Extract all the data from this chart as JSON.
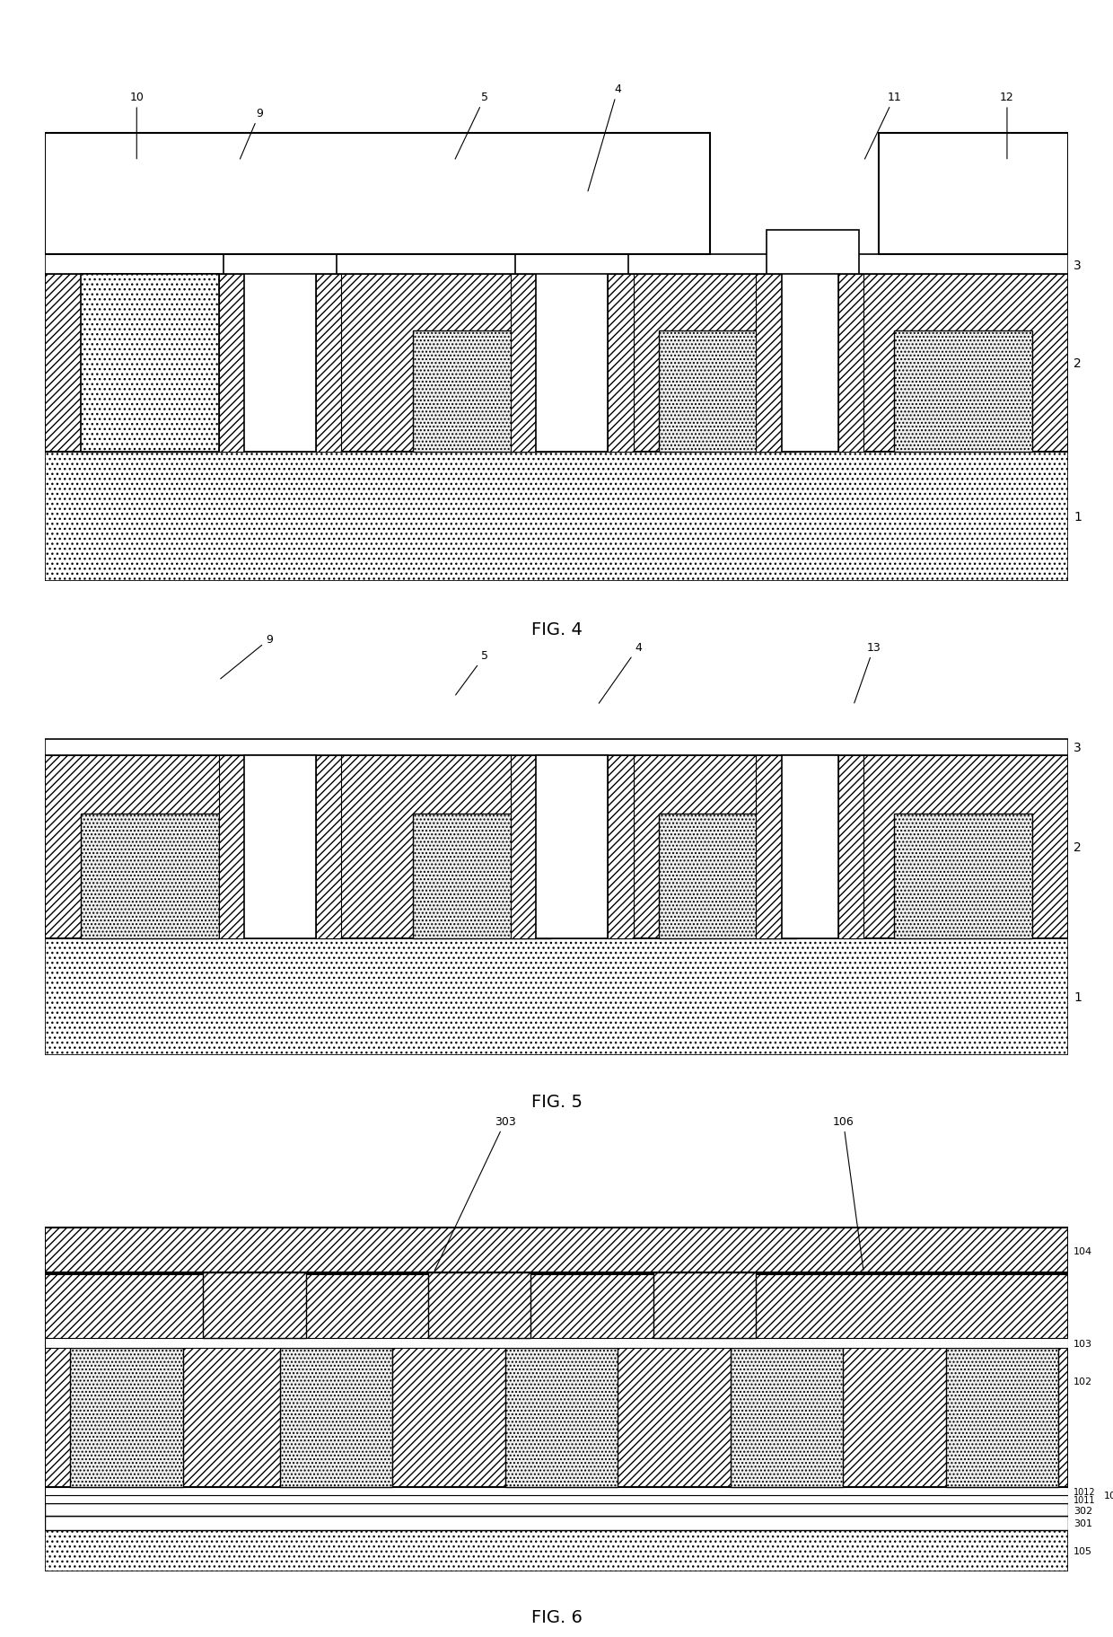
{
  "fig_width": 12.4,
  "fig_height": 18.24,
  "bg_color": "#ffffff",
  "line_color": "#000000",
  "hatch_diagonal": "////",
  "hatch_dot": "....",
  "hatch_wave": "~~~~",
  "figures": [
    "FIG. 4",
    "FIG. 5",
    "FIG. 6"
  ]
}
